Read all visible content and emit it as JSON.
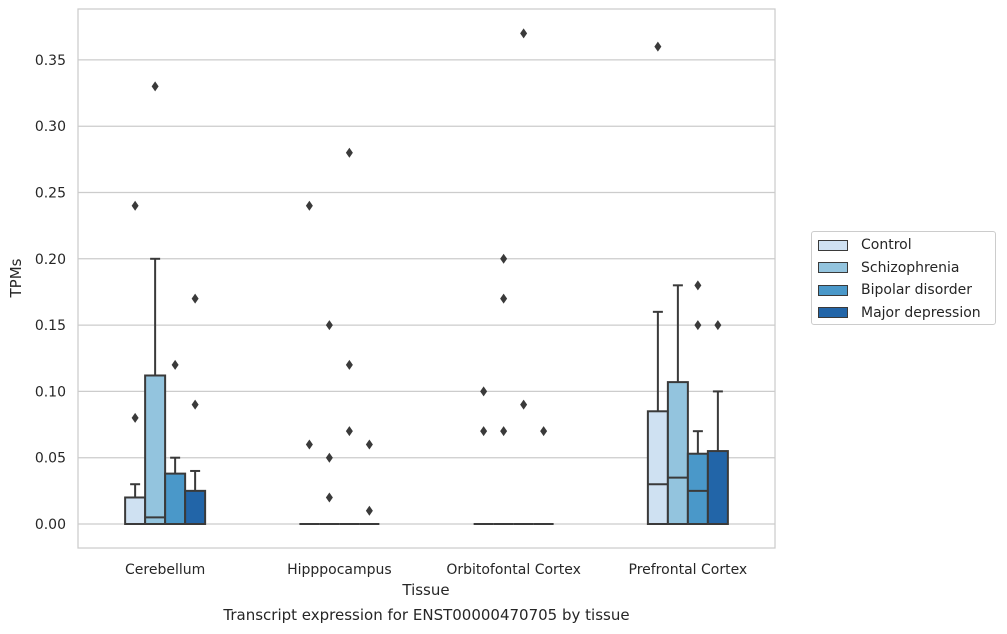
{
  "chart_data": {
    "type": "box",
    "ylabel": "TPMs",
    "xlabel": "Tissue",
    "caption": "Transcript expression for ENST00000470705 by tissue",
    "ylim": [
      -0.018,
      0.389
    ],
    "yticks": [
      "0.00",
      "0.05",
      "0.10",
      "0.15",
      "0.20",
      "0.25",
      "0.30",
      "0.35"
    ],
    "ytick_values": [
      0,
      0.05,
      0.1,
      0.15,
      0.2,
      0.25,
      0.3,
      0.35
    ],
    "grid": true,
    "legend_position": "right",
    "categories": [
      "Cerebellum",
      "Hipppocampus",
      "Orbitofontal Cortex",
      "Prefrontal Cortex"
    ],
    "series": [
      {
        "name": "Control",
        "color": "#cfe1f2",
        "boxes": [
          {
            "q1": 0,
            "median": 0,
            "q3": 0.02,
            "whisker_low": 0,
            "whisker_high": 0.03,
            "outliers": [
              0.08,
              0.24
            ]
          },
          {
            "q1": 0,
            "median": 0,
            "q3": 0,
            "whisker_low": 0,
            "whisker_high": 0,
            "outliers": [
              0.06,
              0.24
            ]
          },
          {
            "q1": 0,
            "median": 0,
            "q3": 0,
            "whisker_low": 0,
            "whisker_high": 0,
            "outliers": [
              0.07,
              0.1
            ]
          },
          {
            "q1": 0,
            "median": 0.03,
            "q3": 0.085,
            "whisker_low": 0,
            "whisker_high": 0.16,
            "outliers": [
              0.36
            ]
          }
        ]
      },
      {
        "name": "Schizophrenia",
        "color": "#93c4de",
        "boxes": [
          {
            "q1": 0,
            "median": 0.005,
            "q3": 0.112,
            "whisker_low": 0,
            "whisker_high": 0.2,
            "outliers": [
              0.33
            ]
          },
          {
            "q1": 0,
            "median": 0,
            "q3": 0,
            "whisker_low": 0,
            "whisker_high": 0,
            "outliers": [
              0.02,
              0.05,
              0.15
            ]
          },
          {
            "q1": 0,
            "median": 0,
            "q3": 0,
            "whisker_low": 0,
            "whisker_high": 0,
            "outliers": [
              0.07,
              0.17,
              0.2
            ]
          },
          {
            "q1": 0,
            "median": 0.035,
            "q3": 0.107,
            "whisker_low": 0,
            "whisker_high": 0.18,
            "outliers": []
          }
        ]
      },
      {
        "name": "Bipolar disorder",
        "color": "#4a98c9",
        "boxes": [
          {
            "q1": 0,
            "median": 0,
            "q3": 0.038,
            "whisker_low": 0,
            "whisker_high": 0.05,
            "outliers": [
              0.12
            ]
          },
          {
            "q1": 0,
            "median": 0,
            "q3": 0,
            "whisker_low": 0,
            "whisker_high": 0,
            "outliers": [
              0.07,
              0.12,
              0.28
            ]
          },
          {
            "q1": 0,
            "median": 0,
            "q3": 0,
            "whisker_low": 0,
            "whisker_high": 0,
            "outliers": [
              0.09,
              0.37
            ]
          },
          {
            "q1": 0,
            "median": 0.025,
            "q3": 0.053,
            "whisker_low": 0,
            "whisker_high": 0.07,
            "outliers": [
              0.15,
              0.18
            ]
          }
        ]
      },
      {
        "name": "Major depression",
        "color": "#2265a8",
        "boxes": [
          {
            "q1": 0,
            "median": 0,
            "q3": 0.025,
            "whisker_low": 0,
            "whisker_high": 0.04,
            "outliers": [
              0.09,
              0.17
            ]
          },
          {
            "q1": 0,
            "median": 0,
            "q3": 0,
            "whisker_low": 0,
            "whisker_high": 0,
            "outliers": [
              0.01,
              0.06
            ]
          },
          {
            "q1": 0,
            "median": 0,
            "q3": 0,
            "whisker_low": 0,
            "whisker_high": 0,
            "outliers": [
              0.07
            ]
          },
          {
            "q1": 0,
            "median": 0,
            "q3": 0.055,
            "whisker_low": 0,
            "whisker_high": 0.1,
            "outliers": [
              0.15
            ]
          }
        ]
      }
    ]
  }
}
